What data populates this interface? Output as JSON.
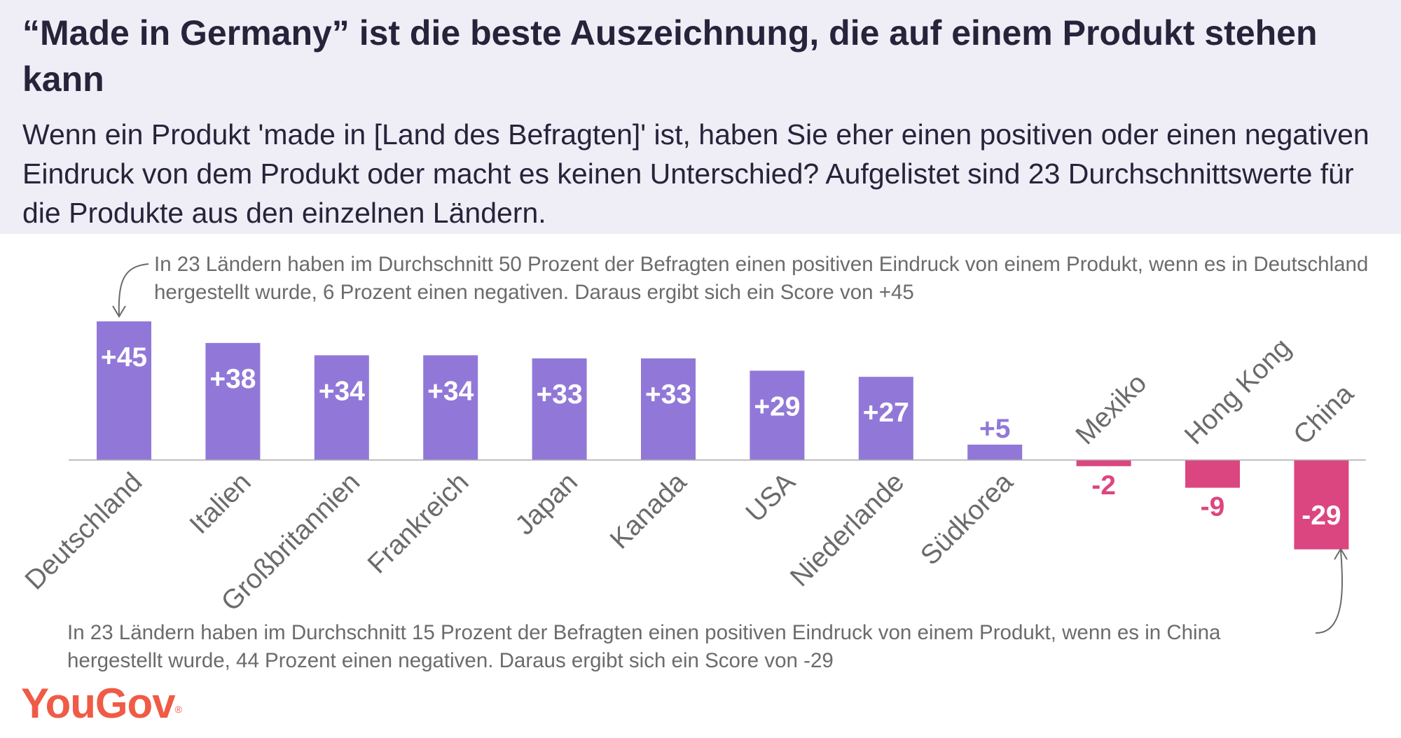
{
  "header": {
    "title": "“Made in Germany” ist die beste Auszeichnung, die auf einem Produkt stehen kann",
    "subtitle": "Wenn ein Produkt 'made in [Land des Befragten]' ist, haben Sie eher einen positiven oder einen negativen Eindruck von dem Produkt oder macht es keinen Unterschied? Aufgelistet sind 23 Durchschnittswerte für die Produkte aus den einzelnen Ländern."
  },
  "annotations": {
    "top": "In 23 Ländern haben im Durchschnitt 50 Prozent der Befragten einen positiven Eindruck von einem Produkt, wenn es in Deutschland hergestellt wurde, 6 Prozent einen negativen. Daraus ergibt sich ein Score von +45",
    "bottom": "In 23 Ländern haben im Durchschnitt 15 Prozent der Befragten einen positiven Eindruck von einem Produkt, wenn es in China hergestellt wurde, 44 Prozent einen negativen. Daraus ergibt sich ein Score von -29"
  },
  "brand": {
    "logo": "YouGov",
    "mark": "®",
    "color": "#ef5b46"
  },
  "colors": {
    "positive": "#9178d8",
    "negative": "#dc4680",
    "label": "#6b6b6b",
    "axis": "#aaaaaa"
  },
  "chart_data": {
    "type": "bar",
    "categories": [
      "Deutschland",
      "Italien",
      "Großbritannien",
      "Frankreich",
      "Japan",
      "Kanada",
      "USA",
      "Niederlande",
      "Südkorea",
      "Mexiko",
      "Hong Kong",
      "China"
    ],
    "values": [
      45,
      38,
      34,
      34,
      33,
      33,
      29,
      27,
      5,
      -2,
      -9,
      -29
    ],
    "value_labels": [
      "+45",
      "+38",
      "+34",
      "+34",
      "+33",
      "+33",
      "+29",
      "+27",
      "+5",
      "-2",
      "-9",
      "-29"
    ],
    "ylim": [
      -29,
      45
    ],
    "grid": false,
    "legend": "none"
  }
}
